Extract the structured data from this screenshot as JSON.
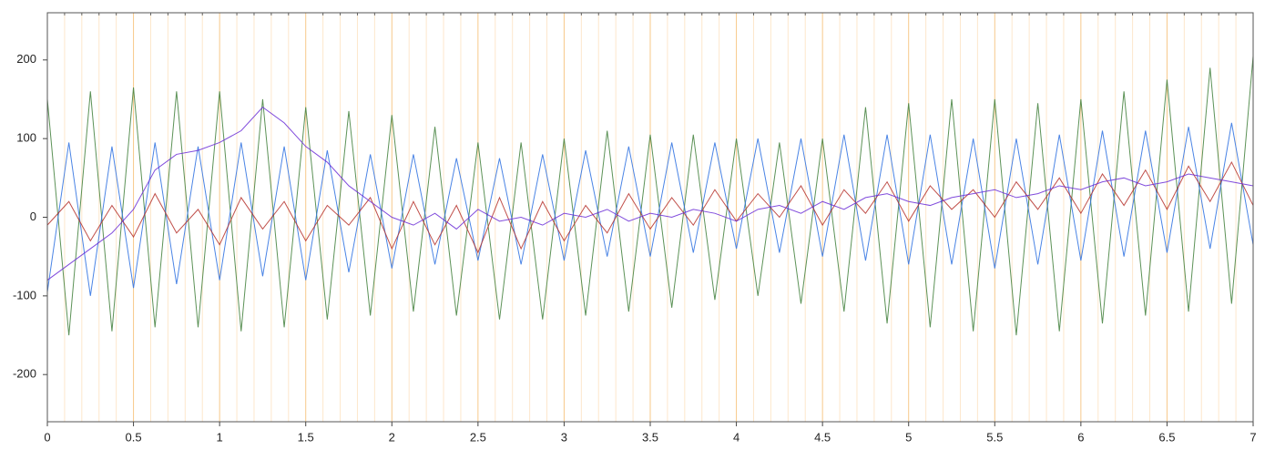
{
  "chart_data": {
    "type": "line",
    "xlim": [
      0,
      7
    ],
    "ylim": [
      -260,
      260
    ],
    "xticks": [
      0,
      0.5,
      1,
      1.5,
      2,
      2.5,
      3,
      3.5,
      4,
      4.5,
      5,
      5.5,
      6,
      6.5,
      7
    ],
    "x_minor_ticks": [
      0.1,
      0.2,
      0.3,
      0.4,
      0.6,
      0.7,
      0.8,
      0.9,
      1.1,
      1.2,
      1.3,
      1.4,
      1.6,
      1.7,
      1.8,
      1.9,
      2.1,
      2.2,
      2.3,
      2.4,
      2.6,
      2.7,
      2.8,
      2.9,
      3.1,
      3.2,
      3.3,
      3.4,
      3.6,
      3.7,
      3.8,
      3.9,
      4.1,
      4.2,
      4.3,
      4.4,
      4.6,
      4.7,
      4.8,
      4.9,
      5.1,
      5.2,
      5.3,
      5.4,
      5.6,
      5.7,
      5.8,
      5.9,
      6.1,
      6.2,
      6.3,
      6.4,
      6.6,
      6.7,
      6.8,
      6.9
    ],
    "yticks": [
      -200,
      -100,
      0,
      100,
      200
    ],
    "grid": true,
    "grid_color": "#f7c98a",
    "minor_grid_color": "#fde7cc",
    "x": [
      0,
      0.125,
      0.25,
      0.375,
      0.5,
      0.625,
      0.75,
      0.875,
      1,
      1.125,
      1.25,
      1.375,
      1.5,
      1.625,
      1.75,
      1.875,
      2,
      2.125,
      2.25,
      2.375,
      2.5,
      2.625,
      2.75,
      2.875,
      3,
      3.125,
      3.25,
      3.375,
      3.5,
      3.625,
      3.75,
      3.875,
      4,
      4.125,
      4.25,
      4.375,
      4.5,
      4.625,
      4.75,
      4.875,
      5,
      5.125,
      5.25,
      5.375,
      5.5,
      5.625,
      5.75,
      5.875,
      6,
      6.125,
      6.25,
      6.375,
      6.5,
      6.625,
      6.75,
      6.875,
      7
    ],
    "series": [
      {
        "color": "#3f7f3a",
        "values": [
          150,
          -150,
          160,
          -145,
          165,
          -140,
          160,
          -140,
          160,
          -145,
          150,
          -140,
          140,
          -130,
          135,
          -125,
          130,
          -120,
          115,
          -125,
          95,
          -130,
          95,
          -130,
          100,
          -125,
          110,
          -120,
          105,
          -115,
          105,
          -105,
          100,
          -100,
          95,
          -110,
          100,
          -120,
          140,
          -135,
          145,
          -140,
          150,
          -145,
          150,
          -150,
          145,
          -145,
          150,
          -135,
          160,
          -125,
          175,
          -120,
          190,
          -110,
          205
        ]
      },
      {
        "color": "#2a6fe0",
        "values": [
          -95,
          95,
          -100,
          90,
          -90,
          95,
          -85,
          90,
          -80,
          95,
          -75,
          90,
          -80,
          85,
          -70,
          80,
          -65,
          80,
          -60,
          75,
          -55,
          75,
          -60,
          80,
          -55,
          85,
          -50,
          90,
          -50,
          95,
          -45,
          95,
          -40,
          100,
          -45,
          100,
          -50,
          105,
          -55,
          105,
          -60,
          105,
          -60,
          100,
          -65,
          100,
          -60,
          105,
          -55,
          110,
          -50,
          110,
          -45,
          115,
          -40,
          120,
          -35
        ]
      },
      {
        "color": "#b5302a",
        "values": [
          -10,
          20,
          -30,
          15,
          -25,
          30,
          -20,
          10,
          -35,
          25,
          -15,
          20,
          -30,
          15,
          -10,
          25,
          -40,
          20,
          -35,
          15,
          -45,
          25,
          -40,
          20,
          -30,
          15,
          -20,
          30,
          -15,
          25,
          -10,
          35,
          -5,
          30,
          0,
          40,
          -10,
          35,
          5,
          45,
          -5,
          40,
          10,
          35,
          0,
          45,
          10,
          50,
          5,
          55,
          15,
          60,
          10,
          65,
          20,
          70,
          15
        ]
      },
      {
        "color": "#6a2bd6",
        "values": [
          -80,
          -60,
          -40,
          -20,
          10,
          60,
          80,
          85,
          95,
          110,
          140,
          120,
          90,
          70,
          40,
          20,
          0,
          -10,
          5,
          -15,
          10,
          -5,
          0,
          -10,
          5,
          0,
          10,
          -5,
          5,
          0,
          10,
          5,
          -5,
          10,
          15,
          5,
          20,
          10,
          25,
          30,
          20,
          15,
          25,
          30,
          35,
          25,
          30,
          40,
          35,
          45,
          50,
          40,
          45,
          55,
          50,
          45,
          40
        ]
      }
    ]
  }
}
